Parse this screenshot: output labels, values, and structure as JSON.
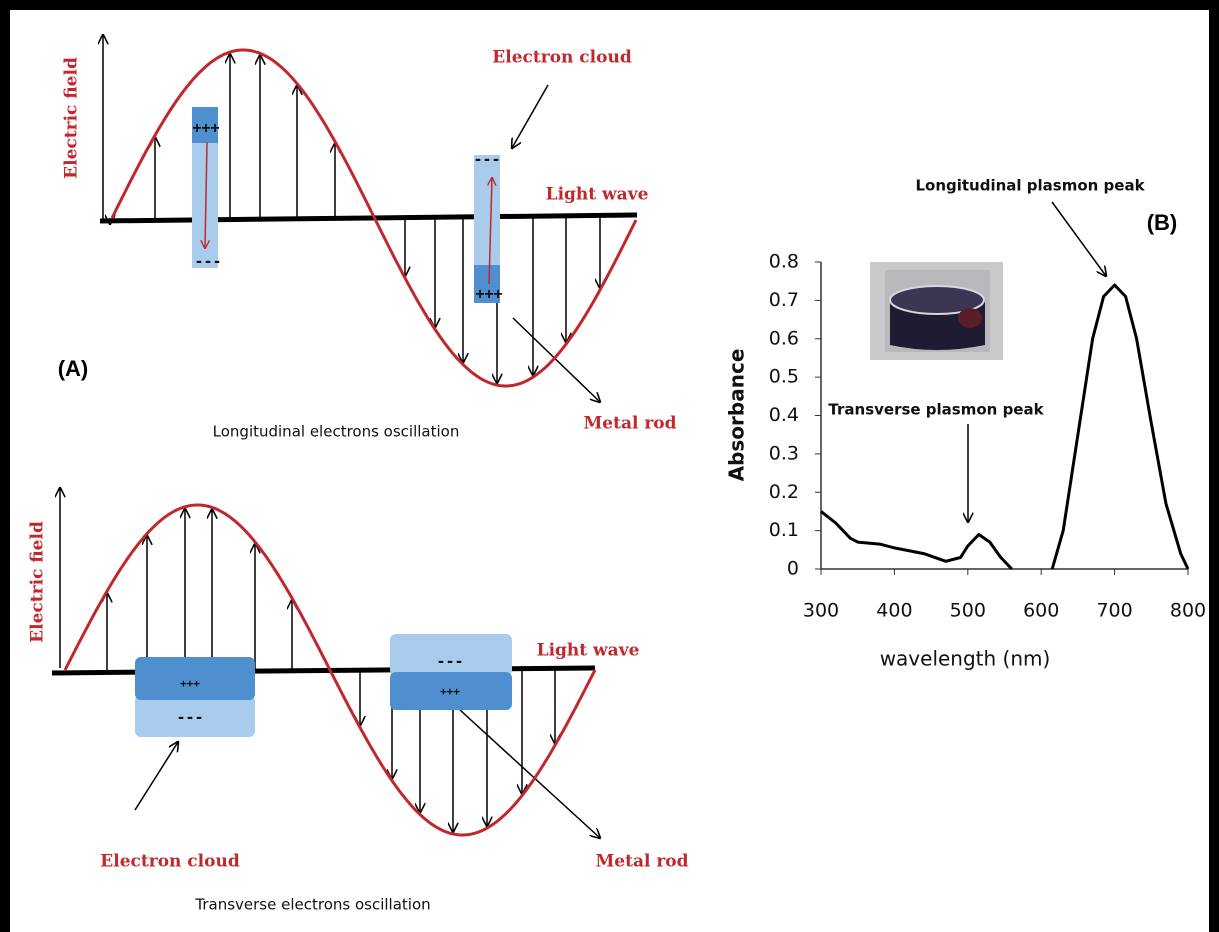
{
  "diagram": {
    "panel_a_label": "(A)",
    "top": {
      "electric_field": "Electric field",
      "electron_cloud": "Electron cloud",
      "light_wave": "Light wave",
      "metal_rod": "Metal rod",
      "caption": "Longitudinal electrons oscillation",
      "charges": [
        "+++",
        "---",
        "---",
        "+++"
      ]
    },
    "bottom": {
      "electric_field": "Electric field",
      "electron_cloud": "Electron cloud",
      "light_wave": "Light wave",
      "metal_rod": "Metal rod",
      "caption": "Transverse electrons oscillation",
      "charges": [
        "+++",
        "---",
        "---",
        "+++"
      ]
    }
  },
  "chart_data": {
    "type": "line",
    "panel_label": "(B)",
    "xlabel": "wavelength (nm)",
    "ylabel": "Absorbance",
    "annotations": [
      "Longitudinal plasmon peak",
      "Transverse plasmon peak"
    ],
    "x": [
      300,
      320,
      340,
      350,
      380,
      400,
      440,
      470,
      490,
      500,
      515,
      530,
      545,
      560,
      590,
      615,
      630,
      650,
      670,
      685,
      700,
      715,
      730,
      750,
      770,
      790,
      800
    ],
    "values": [
      0.15,
      0.12,
      0.08,
      0.07,
      0.065,
      0.055,
      0.04,
      0.02,
      0.03,
      0.06,
      0.09,
      0.07,
      0.03,
      0,
      null,
      0,
      0.1,
      0.35,
      0.6,
      0.71,
      0.74,
      0.71,
      0.6,
      0.38,
      0.17,
      0.04,
      0
    ],
    "color": "#000000",
    "xlim": [
      300,
      800
    ],
    "xticks": [
      300,
      400,
      500,
      600,
      700,
      800
    ],
    "ylim": [
      0,
      0.8
    ],
    "yticks": [
      0,
      0.1,
      0.2,
      0.3,
      0.4,
      0.5,
      0.6,
      0.7,
      0.8
    ],
    "grid": false
  }
}
